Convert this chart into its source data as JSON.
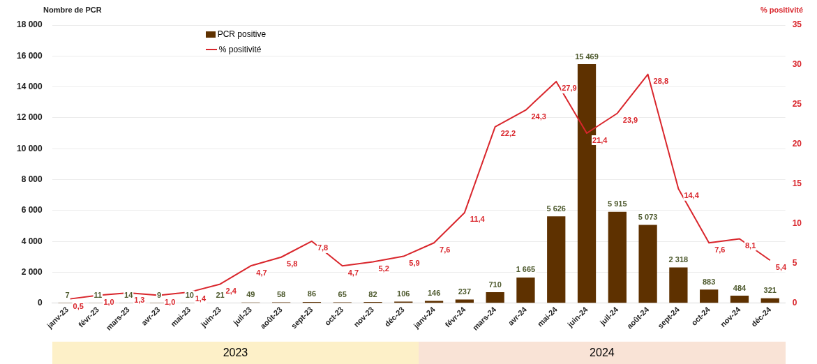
{
  "chart_data": {
    "type": "bar",
    "ylabel": "Nombre de PCR",
    "y2label": "% positivité",
    "categories": [
      "janv-23",
      "févr-23",
      "mars-23",
      "avr-23",
      "mai-23",
      "juin-23",
      "juil-23",
      "août-23",
      "sept-23",
      "oct-23",
      "nov-23",
      "déc-23",
      "janv-24",
      "févr-24",
      "mars-24",
      "avr-24",
      "mai-24",
      "juin-24",
      "juil-24",
      "août-24",
      "sept-24",
      "oct-24",
      "nov-24",
      "déc-24"
    ],
    "series": [
      {
        "name": "PCR positive",
        "color": "#5e3100",
        "values": [
          7,
          11,
          14,
          9,
          10,
          21,
          49,
          58,
          86,
          65,
          82,
          106,
          146,
          237,
          710,
          1665,
          5626,
          15469,
          5915,
          5073,
          2318,
          883,
          484,
          321
        ],
        "value_labels": [
          "7",
          "11",
          "14",
          "9",
          "10",
          "21",
          "49",
          "58",
          "86",
          "65",
          "82",
          "106",
          "146",
          "237",
          "710",
          "1 665",
          "5 626",
          "15 469",
          "5 915",
          "5 073",
          "2 318",
          "883",
          "484",
          "321"
        ]
      },
      {
        "name": "% positivité",
        "type": "line",
        "axis": "y2",
        "color": "#d9262c",
        "values": [
          0.5,
          1.0,
          1.3,
          1.0,
          1.4,
          2.4,
          4.7,
          5.8,
          7.8,
          4.7,
          5.2,
          5.9,
          7.6,
          11.4,
          22.2,
          24.3,
          27.9,
          21.4,
          23.9,
          28.8,
          14.4,
          7.6,
          8.1,
          5.4
        ],
        "value_labels": [
          "0,5",
          "1,0",
          "1,3",
          "1,0",
          "1,4",
          "2,4",
          "4,7",
          "5,8",
          "7,8",
          "4,7",
          "5,2",
          "5,9",
          "7,6",
          "11,4",
          "22,2",
          "24,3",
          "27,9",
          "21,4",
          "23,9",
          "28,8",
          "14,4",
          "7,6",
          "8,1",
          "5,4"
        ]
      }
    ],
    "ylim": [
      0,
      18000
    ],
    "yticks": [
      0,
      {
        "value": 2000,
        "label": "2 000"
      },
      {
        "value": 4000,
        "label": "4 000"
      },
      {
        "value": 6000,
        "label": "6 000"
      },
      {
        "value": 8000,
        "label": "8 000"
      },
      {
        "value": 10000,
        "label": "10 000"
      },
      {
        "value": 12000,
        "label": "12 000"
      },
      {
        "value": 14000,
        "label": "14 000"
      },
      {
        "value": 16000,
        "label": "16 000"
      },
      {
        "value": 18000,
        "label": "18 000"
      }
    ],
    "y2lim": [
      0,
      35
    ],
    "y2ticks": [
      0,
      5,
      10,
      15,
      20,
      25,
      30,
      35
    ],
    "grid": "y",
    "legend": "top left",
    "marker": "none",
    "line_style": "solid",
    "annotations": [
      "2023",
      "2024"
    ]
  }
}
